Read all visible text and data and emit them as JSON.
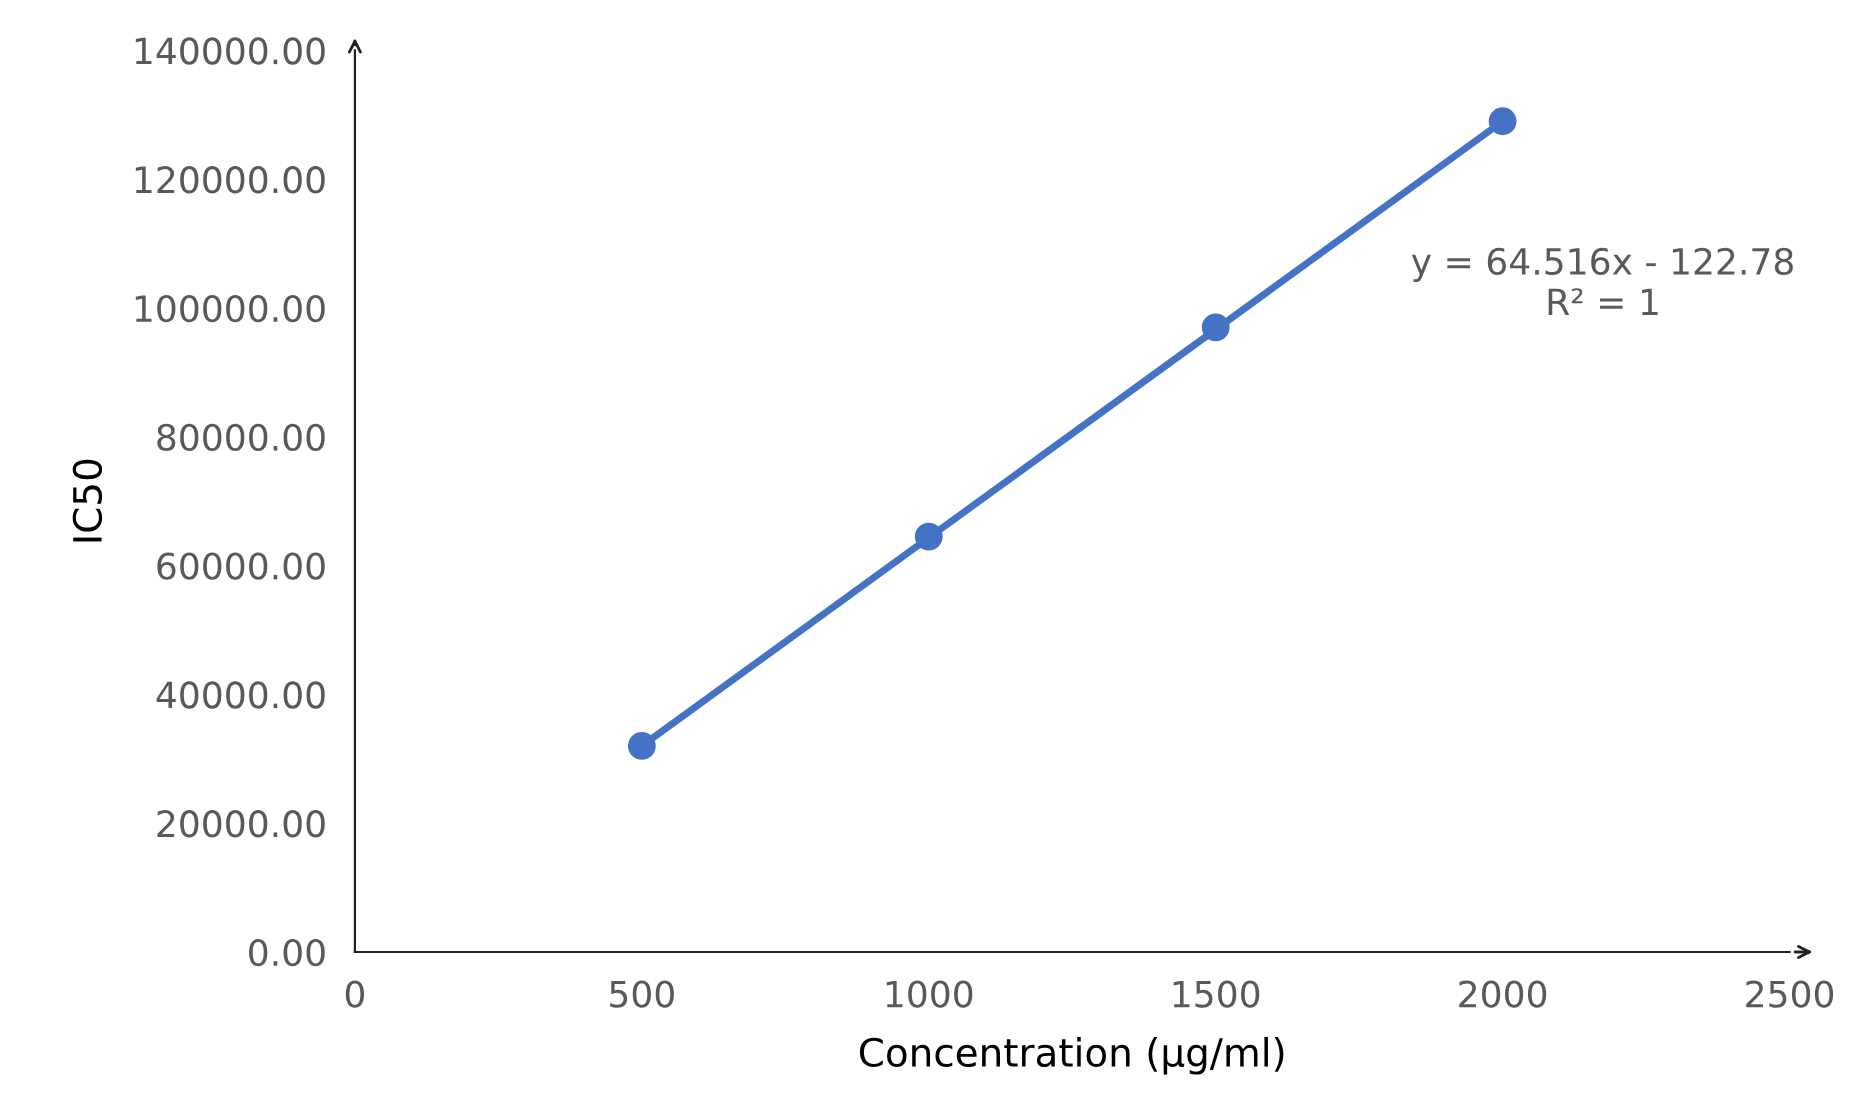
{
  "chart_data": {
    "type": "scatter",
    "xlabel": "Concentration (µg/ml)",
    "ylabel": "IC50",
    "series": [
      {
        "color": "#4472c4",
        "x": [
          500,
          1000,
          1500,
          2000
        ],
        "values": [
          32000,
          64500,
          97000,
          129000
        ],
        "marker": "circle"
      },
      {
        "type": "line",
        "color": "#4472c4",
        "x": [
          500,
          2000
        ],
        "values": [
          32000,
          129000
        ],
        "marker": "none",
        "line_style": "solid"
      }
    ],
    "xlim": [
      0,
      2500
    ],
    "xticks": [
      0,
      500,
      1000,
      1500,
      2000,
      2500
    ],
    "ylim": [
      0,
      140000
    ],
    "yticks": [
      {
        "value": 0,
        "label": "0.00"
      },
      {
        "value": 20000,
        "label": "20000.00"
      },
      {
        "value": 40000,
        "label": "40000.00"
      },
      {
        "value": 60000,
        "label": "60000.00"
      },
      {
        "value": 80000,
        "label": "80000.00"
      },
      {
        "value": 100000,
        "label": "100000.00"
      },
      {
        "value": 120000,
        "label": "120000.00"
      },
      {
        "value": 140000,
        "label": "140000.00"
      }
    ],
    "grid": false,
    "legend": false,
    "annotations": [
      "y = 64.516x - 122.78\nR² = 1"
    ]
  }
}
